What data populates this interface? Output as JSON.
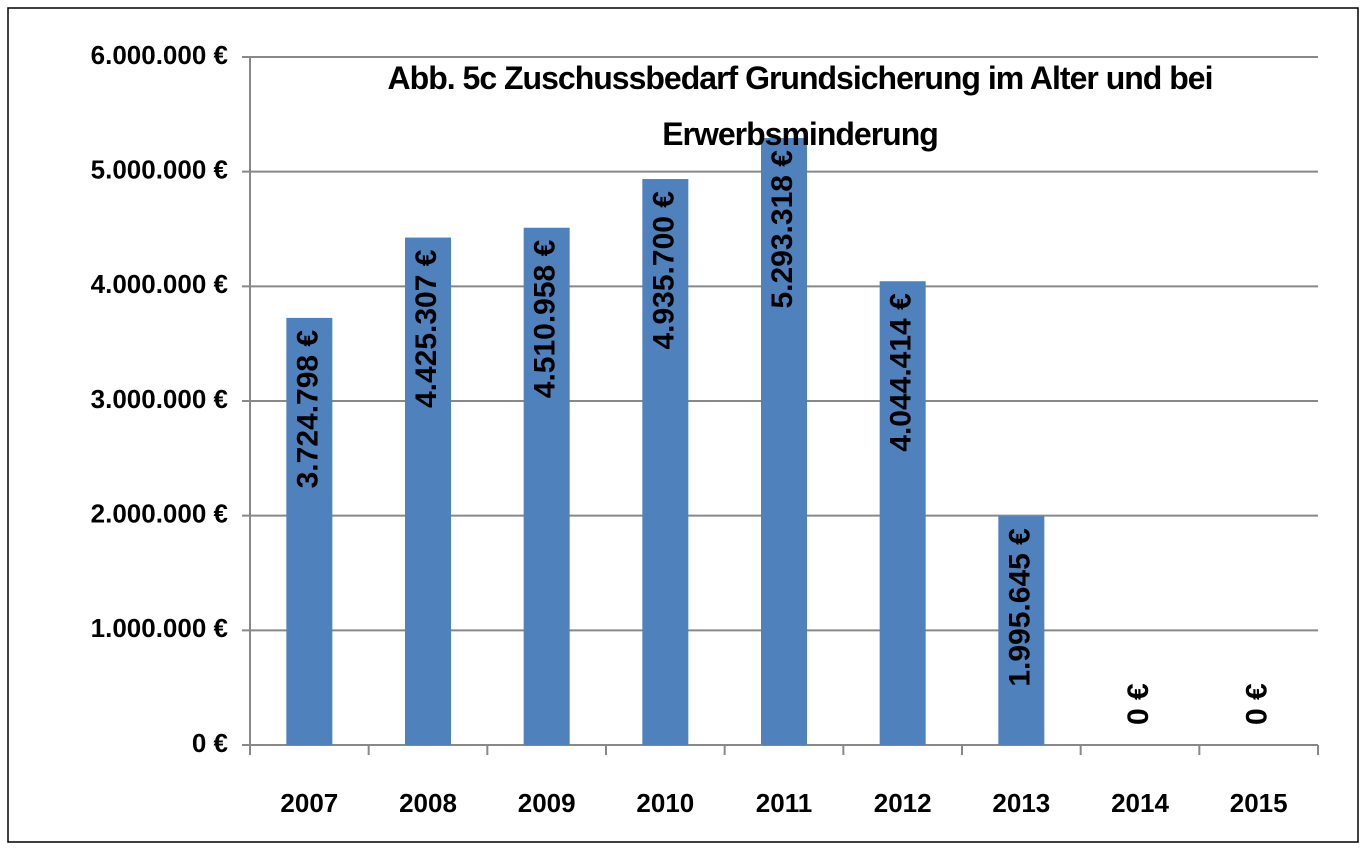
{
  "chart_data": {
    "type": "bar",
    "title": "Abb. 5c  Zuschussbedarf  Grundsicherung im Alter und bei Erwerbsminderung",
    "categories": [
      "2007",
      "2008",
      "2009",
      "2010",
      "2011",
      "2012",
      "2013",
      "2014",
      "2015"
    ],
    "values": [
      3724798,
      4425307,
      4510958,
      4935700,
      5293318,
      4044414,
      1995645,
      0,
      0
    ],
    "value_labels": [
      "3.724.798 €",
      "4.425.307 €",
      "4.510.958 €",
      "4.935.700 €",
      "5.293.318 €",
      "4.044.414 €",
      "1.995.645 €",
      "0 €",
      "0 €"
    ],
    "color": "#4f81bd",
    "ylim": [
      0,
      6000000
    ],
    "yticks": [
      {
        "value": 0,
        "label": "0 €"
      },
      {
        "value": 1000000,
        "label": "1.000.000 €"
      },
      {
        "value": 2000000,
        "label": "2.000.000 €"
      },
      {
        "value": 3000000,
        "label": "3.000.000 €"
      },
      {
        "value": 4000000,
        "label": "4.000.000 €"
      },
      {
        "value": 5000000,
        "label": "5.000.000 €"
      },
      {
        "value": 6000000,
        "label": "6.000.000 €"
      }
    ],
    "grid": true
  }
}
